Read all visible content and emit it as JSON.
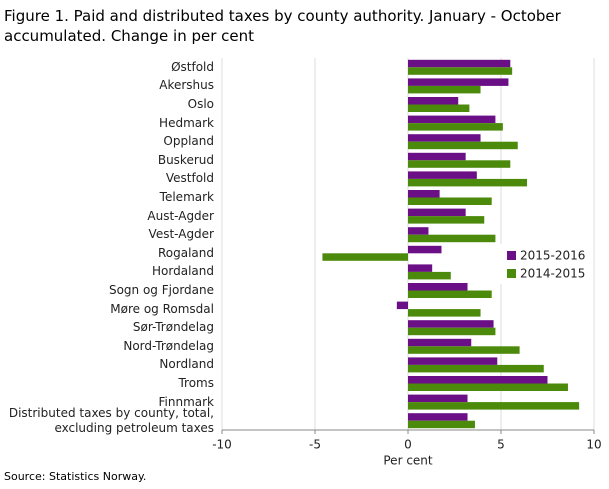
{
  "chart_data": {
    "type": "hbar",
    "title": "Figure 1. Paid and distributed taxes by county authority. January - October accumulated. Change in per cent",
    "source": "Source: Statistics Norway.",
    "xlabel": "Per cent",
    "categories": [
      "Østfold",
      "Akershus",
      "Oslo",
      "Hedmark",
      "Oppland",
      "Buskerud",
      "Vestfold",
      "Telemark",
      "Aust-Agder",
      "Vest-Agder",
      "Rogaland",
      "Hordaland",
      "Sogn og Fjordane",
      "Møre og Romsdal",
      "Sør-Trøndelag",
      "Nord-Trøndelag",
      "Nordland",
      "Troms",
      "Finnmark",
      "Distributed taxes by county, total, excluding petroleum taxes"
    ],
    "series": [
      {
        "name": "2015-2016",
        "color": "#6a0f86",
        "values": [
          5.5,
          5.4,
          2.7,
          4.7,
          3.9,
          3.1,
          3.7,
          1.7,
          3.1,
          1.1,
          1.8,
          1.3,
          3.2,
          -0.6,
          4.6,
          3.4,
          4.8,
          7.5,
          3.2,
          3.2
        ]
      },
      {
        "name": "2014-2015",
        "color": "#4c8a0c",
        "values": [
          5.6,
          3.9,
          3.3,
          5.1,
          5.9,
          5.5,
          6.4,
          4.5,
          4.1,
          4.7,
          -4.6,
          2.3,
          4.5,
          3.9,
          4.7,
          6.0,
          7.3,
          8.6,
          9.2,
          3.6
        ]
      }
    ],
    "xlim": [
      -10,
      10
    ],
    "xticks": [
      -10,
      -5,
      0,
      5,
      10
    ],
    "grid": true,
    "legend": "right"
  }
}
